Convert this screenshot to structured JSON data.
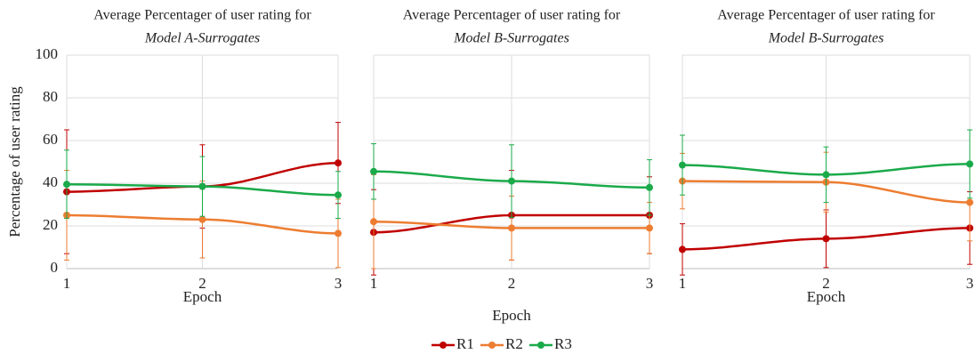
{
  "chart_data": [
    {
      "type": "line",
      "title": "Average Percentager of user rating for",
      "subtitle": "Model A-Surrogates",
      "xlabel": "Epoch",
      "ylabel": "Percentage of user rating",
      "x": [
        1,
        2,
        3
      ],
      "xlim": [
        1,
        3
      ],
      "xticks": [
        1,
        2,
        3
      ],
      "ylim": [
        0,
        100
      ],
      "yticks": [
        0,
        20,
        40,
        60,
        80,
        100
      ],
      "grid": true,
      "series": [
        {
          "name": "R1",
          "color": "#c00000",
          "values": [
            36,
            38.5,
            49.5
          ],
          "errors": [
            29,
            19.5,
            19
          ]
        },
        {
          "name": "R2",
          "color": "#ed7d31",
          "values": [
            25,
            23,
            16.5
          ],
          "errors": [
            21,
            18,
            16
          ]
        },
        {
          "name": "R3",
          "color": "#1aaa4a",
          "values": [
            39.5,
            38.5,
            34.5
          ],
          "errors": [
            16,
            14,
            11
          ]
        }
      ]
    },
    {
      "type": "line",
      "title": "Average Percentager of user rating for",
      "subtitle": "Model B-Surrogates",
      "xlabel": "Epoch",
      "x": [
        1,
        2,
        3
      ],
      "xlim": [
        1,
        3
      ],
      "xticks": [
        1,
        2,
        3
      ],
      "ylim": [
        0,
        100
      ],
      "yticks": [
        0,
        20,
        40,
        60,
        80,
        100
      ],
      "grid": true,
      "series": [
        {
          "color": "#c00000",
          "values": [
            17,
            25,
            25
          ],
          "errors": [
            20,
            21,
            18
          ]
        },
        {
          "color": "#ed7d31",
          "values": [
            22,
            19,
            19
          ],
          "errors": [
            22,
            15,
            12
          ]
        },
        {
          "color": "#1aaa4a",
          "values": [
            45.5,
            41,
            38
          ],
          "errors": [
            13,
            17,
            13
          ]
        }
      ]
    },
    {
      "type": "line",
      "title": "Average Percentager of user rating for",
      "subtitle": "Model B-Surrogates",
      "xlabel": "Epoch",
      "x": [
        1,
        2,
        3
      ],
      "xlim": [
        1,
        3
      ],
      "xticks": [
        1,
        2,
        3
      ],
      "ylim": [
        0,
        100
      ],
      "yticks": [
        0,
        20,
        40,
        60,
        80,
        100
      ],
      "grid": true,
      "series": [
        {
          "color": "#c00000",
          "values": [
            9,
            14,
            19
          ],
          "errors": [
            12,
            13.5,
            17
          ]
        },
        {
          "color": "#ed7d31",
          "values": [
            41,
            40.5,
            31
          ],
          "errors": [
            13,
            14,
            18
          ]
        },
        {
          "color": "#1aaa4a",
          "values": [
            48.5,
            44,
            49
          ],
          "errors": [
            14,
            13,
            16
          ]
        }
      ]
    }
  ]
}
